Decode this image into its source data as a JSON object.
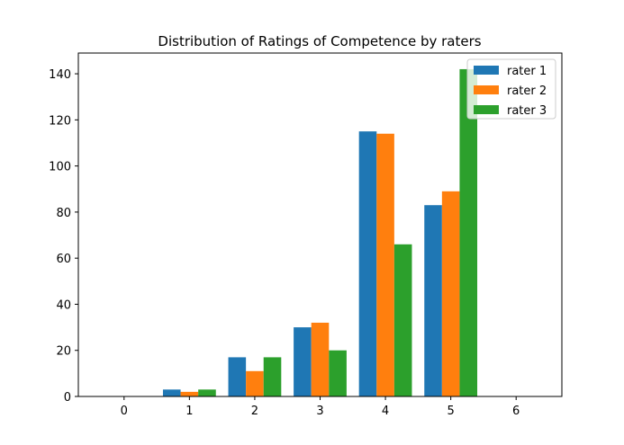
{
  "chart_data": {
    "type": "bar",
    "title": "Distribution of Ratings of Competence by raters",
    "xlabel": "",
    "ylabel": "",
    "categories": [
      1,
      2,
      3,
      4,
      5
    ],
    "series": [
      {
        "name": "rater 1",
        "color": "#1f77b4",
        "values": [
          3,
          17,
          30,
          115,
          83
        ]
      },
      {
        "name": "rater 2",
        "color": "#ff7f0e",
        "values": [
          2,
          11,
          32,
          114,
          89
        ]
      },
      {
        "name": "rater 3",
        "color": "#2ca02c",
        "values": [
          3,
          17,
          20,
          66,
          142
        ]
      }
    ],
    "xlim": [
      -0.7,
      6.7
    ],
    "ylim": [
      0,
      149
    ],
    "xticks": [
      0,
      1,
      2,
      3,
      4,
      5,
      6
    ],
    "yticks": [
      0,
      20,
      40,
      60,
      80,
      100,
      120,
      140
    ],
    "grid": false,
    "legend_position": "top-right"
  }
}
